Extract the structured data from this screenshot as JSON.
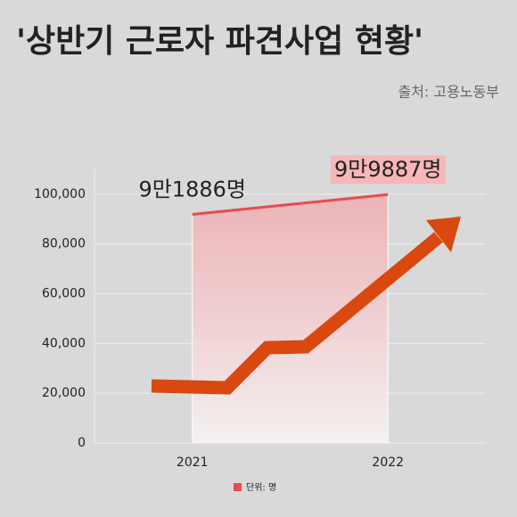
{
  "chart_data": {
    "type": "area",
    "title": "'상반기 근로자 파견사업 현황'",
    "source": "출처: 고용노동부",
    "categories": [
      "2021",
      "2022"
    ],
    "values": [
      91886,
      99887
    ],
    "value_labels": [
      "9만1886명",
      "9만9887명"
    ],
    "color": "#e94a4f",
    "unit_label": "단위: 명",
    "ylim": [
      0,
      110000
    ],
    "yticks": [
      0,
      {
        "value": 20000,
        "label": "20,000"
      },
      {
        "value": 40000,
        "label": "40,000"
      },
      {
        "value": 60000,
        "label": "60,000"
      },
      {
        "value": 80000,
        "label": "80,000"
      },
      {
        "value": 100000,
        "label": "100,000"
      }
    ],
    "grid": true
  }
}
